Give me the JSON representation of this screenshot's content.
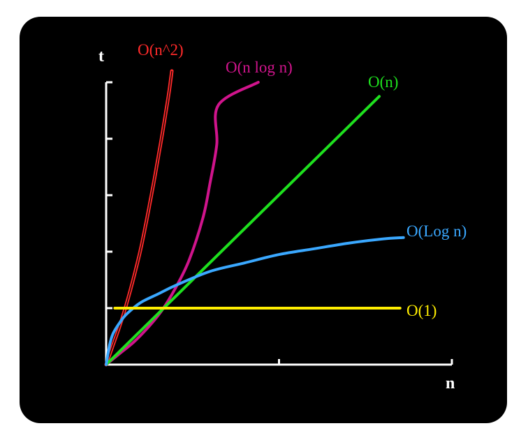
{
  "chart_data": {
    "type": "line",
    "title": "",
    "xlabel": "n",
    "ylabel": "t",
    "x_ticks_count": 2,
    "y_ticks_count": 5,
    "grid": false,
    "legend": "labels at curve ends",
    "background": "#000000",
    "axis_color": "#ffffff",
    "xlim": [
      0,
      100
    ],
    "ylim": [
      0,
      100
    ],
    "series": [
      {
        "name": "O(n^2)",
        "color": "#ff2a2a",
        "double_stroke": true,
        "points": [
          [
            0,
            0
          ],
          [
            2,
            7
          ],
          [
            4,
            14
          ],
          [
            6,
            22
          ],
          [
            8,
            31
          ],
          [
            10,
            41
          ],
          [
            12,
            53
          ],
          [
            14,
            66
          ],
          [
            16,
            80
          ],
          [
            18,
            95
          ],
          [
            19,
            104
          ]
        ]
      },
      {
        "name": "O(n log n)",
        "color": "#d0148c",
        "points": [
          [
            0,
            0
          ],
          [
            4,
            4
          ],
          [
            8,
            8
          ],
          [
            12,
            13
          ],
          [
            16,
            19
          ],
          [
            20,
            27
          ],
          [
            24,
            37
          ],
          [
            28,
            52
          ],
          [
            30,
            64
          ],
          [
            32,
            78
          ],
          [
            32.5,
            92
          ],
          [
            44,
            100
          ]
        ]
      },
      {
        "name": "O(n)",
        "color": "#1ee01e",
        "points": [
          [
            0,
            0
          ],
          [
            79,
            95
          ]
        ]
      },
      {
        "name": "O(Log n)",
        "color": "#3aa8ff",
        "points": [
          [
            0,
            0
          ],
          [
            1,
            7
          ],
          [
            2,
            11
          ],
          [
            4,
            15
          ],
          [
            6,
            18
          ],
          [
            10,
            22
          ],
          [
            15,
            25
          ],
          [
            20,
            28
          ],
          [
            30,
            33
          ],
          [
            40,
            36
          ],
          [
            50,
            39
          ],
          [
            60,
            41
          ],
          [
            70,
            43
          ],
          [
            80,
            44.5
          ],
          [
            86,
            45
          ]
        ]
      },
      {
        "name": "O(1)",
        "color": "#ffee00",
        "points": [
          [
            2.5,
            20
          ],
          [
            85,
            20
          ]
        ]
      }
    ]
  }
}
